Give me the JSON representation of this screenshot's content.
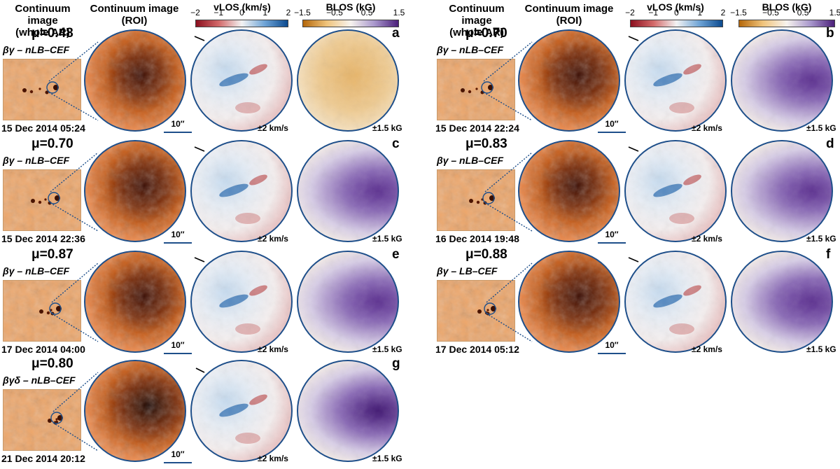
{
  "headers": {
    "whole_ar": "Continuum image\n(whole AR)",
    "roi": "Continuum image\n(ROI)",
    "vlos_title": "vLOS (km/s)",
    "blos_title": "BLOS (kG)"
  },
  "colorbars": {
    "vlos_ticks": [
      "−2",
      "−1",
      "0",
      "1",
      "2"
    ],
    "blos_ticks": [
      "−1.5",
      "−0.5",
      "0.5",
      "1.5"
    ],
    "vlos_colors": [
      "#8b0f1e",
      "#d36a6a",
      "#f3f3f3",
      "#6fa4d6",
      "#0b4a8f"
    ],
    "blos_colors": [
      "#b4670a",
      "#f0c47c",
      "#f7f3ee",
      "#a897cc",
      "#4b1f7a"
    ]
  },
  "units": {
    "scale": "10″",
    "vlos_range": "±2 km/s",
    "blos_range": "±1.5 kG"
  },
  "panels": [
    {
      "letter": "a",
      "mu": "μ=0.48",
      "cls": "βγ – nLB–CEF",
      "date": "15 Dec 2014 05:24",
      "darkness": 0.55,
      "blos": -0.45,
      "vlos": 0.5
    },
    {
      "letter": "b",
      "mu": "μ=0.70",
      "cls": "βγ – nLB–CEF",
      "date": "15 Dec 2014 22:24",
      "darkness": 0.75,
      "blos": 0.6,
      "vlos": 0.4
    },
    {
      "letter": "c",
      "mu": "μ=0.70",
      "cls": "βγ – nLB–CEF",
      "date": "15 Dec 2014 22:36",
      "darkness": 0.72,
      "blos": 0.62,
      "vlos": 0.35
    },
    {
      "letter": "d",
      "mu": "μ=0.83",
      "cls": "βγ – nLB–CEF",
      "date": "16 Dec 2014 19:48",
      "darkness": 0.6,
      "blos": 0.55,
      "vlos": 0.2
    },
    {
      "letter": "e",
      "mu": "μ=0.87",
      "cls": "βγ – nLB–CEF",
      "date": "17 Dec 2014 04:00",
      "darkness": 0.7,
      "blos": 0.6,
      "vlos": -0.3
    },
    {
      "letter": "f",
      "mu": "μ=0.88",
      "cls": "βγ – LB–CEF",
      "date": "17 Dec 2014 05:12",
      "darkness": 0.82,
      "blos": 0.78,
      "vlos": -0.1
    },
    {
      "letter": "g",
      "mu": "μ=0.80",
      "cls": "βγδ – nLB–CEF",
      "date": "21 Dec 2014 20:12",
      "darkness": 0.95,
      "blos": 0.85,
      "vlos": -0.45
    }
  ]
}
